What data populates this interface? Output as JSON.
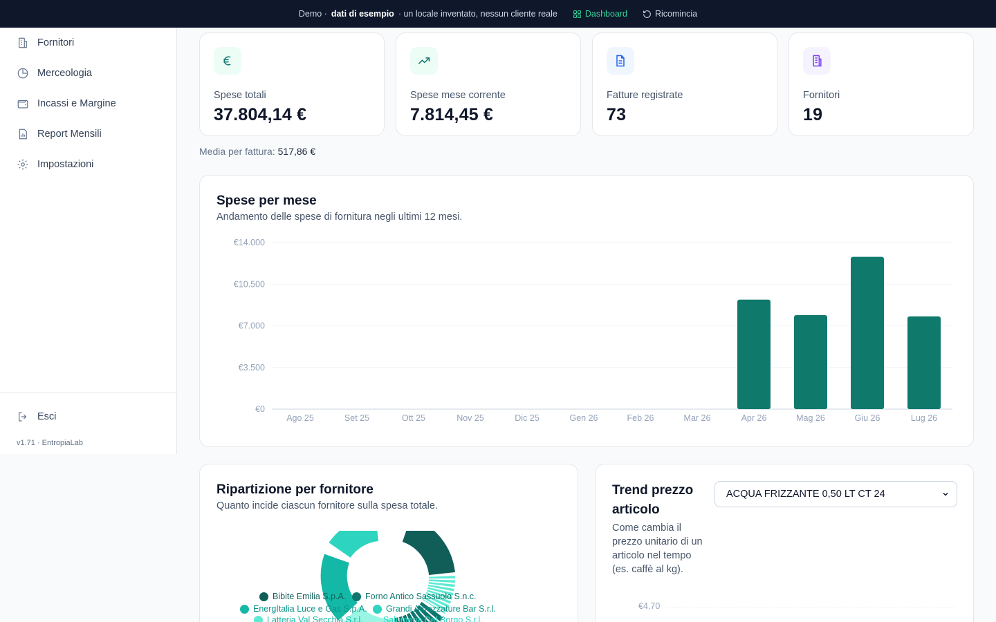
{
  "topbar": {
    "demo": "Demo ·",
    "bold": "dati di esempio",
    "rest": "· un locale inventato, nessun cliente reale",
    "dashboard": "Dashboard",
    "restart": "Ricomincia",
    "accent": "#34d399"
  },
  "sidebar": {
    "items": [
      {
        "label": "Fornitori",
        "icon": "building-icon"
      },
      {
        "label": "Merceologia",
        "icon": "pie-icon"
      },
      {
        "label": "Incassi e Margine",
        "icon": "wallet-icon"
      },
      {
        "label": "Report Mensili",
        "icon": "report-icon"
      },
      {
        "label": "Impostazioni",
        "icon": "gear-icon"
      }
    ],
    "logout": "Esci",
    "version": "v1.71 · EntropiaLab"
  },
  "stats": [
    {
      "label": "Spese totali",
      "value": "37.804,14 €",
      "icon": "euro-icon",
      "color": "#0f766e",
      "bg": "#ecfdf5"
    },
    {
      "label": "Spese mese corrente",
      "value": "7.814,45 €",
      "icon": "trend-up-icon",
      "color": "#0f766e",
      "bg": "#ecfdf5"
    },
    {
      "label": "Fatture registrate",
      "value": "73",
      "icon": "document-icon",
      "color": "#2563eb",
      "bg": "#eff6ff"
    },
    {
      "label": "Fornitori",
      "value": "19",
      "icon": "building-icon",
      "color": "#7c3aed",
      "bg": "#f5f3ff"
    }
  ],
  "average": {
    "label": "Media per fattura:",
    "value": "517,86 €"
  },
  "monthly": {
    "title": "Spese per mese",
    "subtitle": "Andamento delle spese di fornitura negli ultimi 12 mesi."
  },
  "chart_data": {
    "type": "bar",
    "title": "Spese per mese",
    "categories": [
      "Ago 25",
      "Set 25",
      "Ott 25",
      "Nov 25",
      "Dic 25",
      "Gen 26",
      "Feb 26",
      "Mar 26",
      "Apr 26",
      "Mag 26",
      "Giu 26",
      "Lug 26"
    ],
    "values": [
      0,
      0,
      0,
      0,
      0,
      0,
      0,
      0,
      9200,
      7900,
      12800,
      7800
    ],
    "yticks": [
      "€0",
      "€3.500",
      "€7.000",
      "€10.500",
      "€14.000"
    ],
    "ylim": [
      0,
      14000
    ],
    "color": "#0f7a6c",
    "grid": true
  },
  "split": {
    "title": "Ripartizione per fornitore",
    "subtitle": "Quanto incide ciascun fornitore sulla spesa totale.",
    "legend": [
      {
        "name": "Bibite Emilia S.p.A.",
        "color": "#115e59"
      },
      {
        "name": "Forno Antico Sassuolo S.n.c.",
        "color": "#0f766e"
      },
      {
        "name": "EnergItalia Luce e Gas S.p.A.",
        "color": "#14b8a6"
      },
      {
        "name": "Grandi Attrezzature Bar S.r.l.",
        "color": "#2dd4bf"
      },
      {
        "name": "Latteria Val Secchia S.r.l.",
        "color": "#5eead4"
      },
      {
        "name": "Salumeria Del Borgo S.r.l.",
        "color": "#99f6e4"
      }
    ]
  },
  "trend": {
    "title": "Trend prezzo articolo",
    "subtitle": "Come cambia il prezzo unitario di un articolo nel tempo (es. caffè al kg).",
    "selected": "ACQUA FRIZZANTE 0,50 LT CT 24",
    "ytick": "€4,70"
  }
}
